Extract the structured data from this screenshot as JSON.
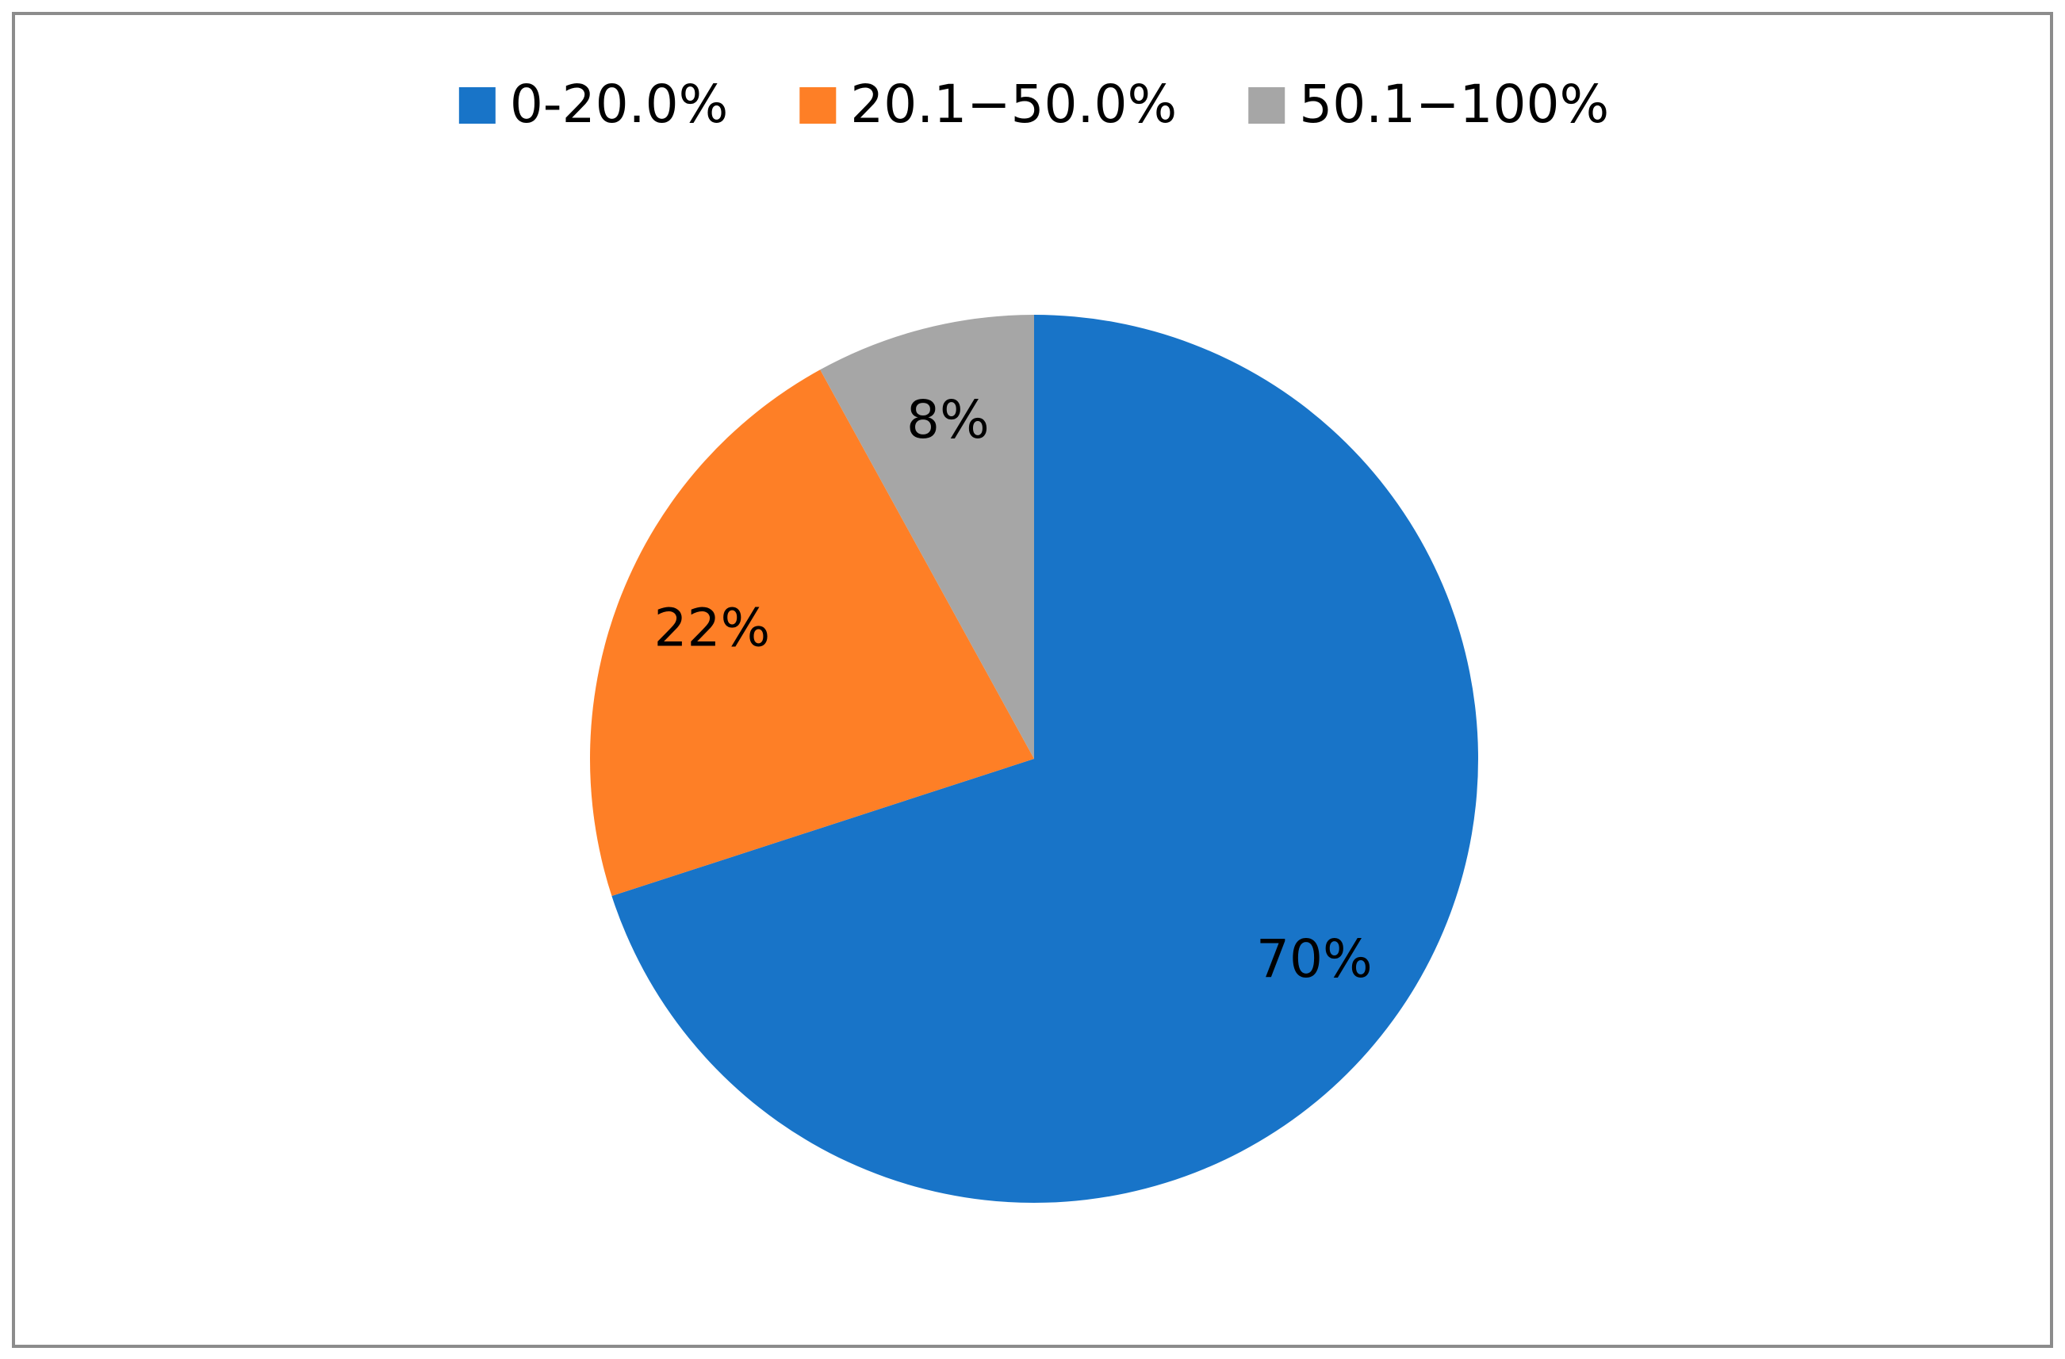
{
  "chart_data": {
    "type": "pie",
    "categories": [
      "0-20.0%",
      "20.1−50.0%",
      "50.1−100%"
    ],
    "values": [
      70,
      22,
      8
    ],
    "value_labels": [
      "70%",
      "22%",
      "8%"
    ],
    "colors": [
      "#1874c8",
      "#fe7f26",
      "#a6a6a6"
    ],
    "legend": "top"
  }
}
